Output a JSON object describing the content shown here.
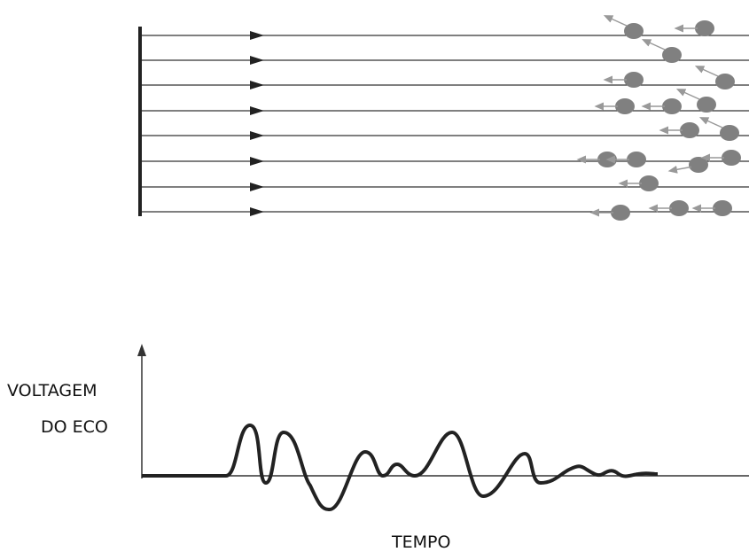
{
  "labels": {
    "y_line1": "VOLTAGEM",
    "y_line2": "DO ECO",
    "x": "TEMPO"
  }
}
